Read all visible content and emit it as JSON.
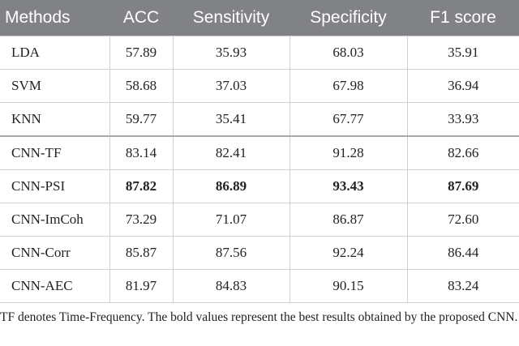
{
  "table": {
    "header": [
      "Methods",
      "ACC",
      "Sensitivity",
      "Specificity",
      "F1 score"
    ],
    "rows": [
      {
        "cells": [
          "LDA",
          "57.89",
          "35.93",
          "68.03",
          "35.91"
        ],
        "bold": false
      },
      {
        "cells": [
          "SVM",
          "58.68",
          "37.03",
          "67.98",
          "36.94"
        ],
        "bold": false
      },
      {
        "cells": [
          "KNN",
          "59.77",
          "35.41",
          "67.77",
          "33.93"
        ],
        "bold": false
      },
      {
        "cells": [
          "CNN-TF",
          "83.14",
          "82.41",
          "91.28",
          "82.66"
        ],
        "bold": false
      },
      {
        "cells": [
          "CNN-PSI",
          "87.82",
          "86.89",
          "93.43",
          "87.69"
        ],
        "bold": true
      },
      {
        "cells": [
          "CNN-ImCoh",
          "73.29",
          "71.07",
          "86.87",
          "72.60"
        ],
        "bold": false
      },
      {
        "cells": [
          "CNN-Corr",
          "85.87",
          "87.56",
          "92.24",
          "86.44"
        ],
        "bold": false
      },
      {
        "cells": [
          "CNN-AEC",
          "81.97",
          "84.83",
          "90.15",
          "83.24"
        ],
        "bold": false
      }
    ]
  },
  "footnote": "TF denotes Time-Frequency. The bold values represent the best results obtained by the proposed CNN."
}
